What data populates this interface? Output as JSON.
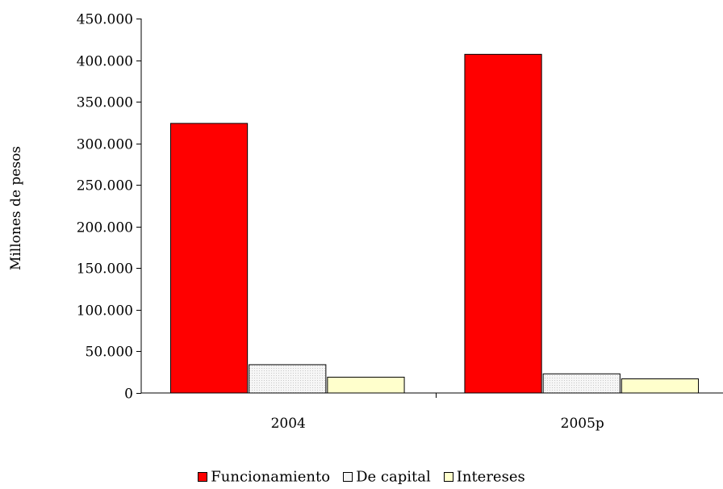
{
  "chart_data": {
    "type": "bar",
    "categories": [
      "2004",
      "2005p"
    ],
    "series": [
      {
        "name": "Funcionamiento",
        "values": [
          324000,
          407000
        ],
        "color": "#ff0000"
      },
      {
        "name": "De capital",
        "values": [
          34000,
          23000
        ],
        "color": "#f4f4f4"
      },
      {
        "name": "Intereses",
        "values": [
          19000,
          17000
        ],
        "color": "#ffffcc"
      }
    ],
    "ylabel": "Millones de pesos",
    "ylim": [
      0,
      450000
    ],
    "yticks": [
      0,
      50000,
      100000,
      150000,
      200000,
      250000,
      300000,
      350000,
      400000,
      450000
    ],
    "ytick_labels": [
      "0",
      "50.000",
      "100.000",
      "150.000",
      "200.000",
      "250.000",
      "300.000",
      "350.000",
      "400.000",
      "450.000"
    ],
    "legend_position": "bottom",
    "grid": false
  }
}
